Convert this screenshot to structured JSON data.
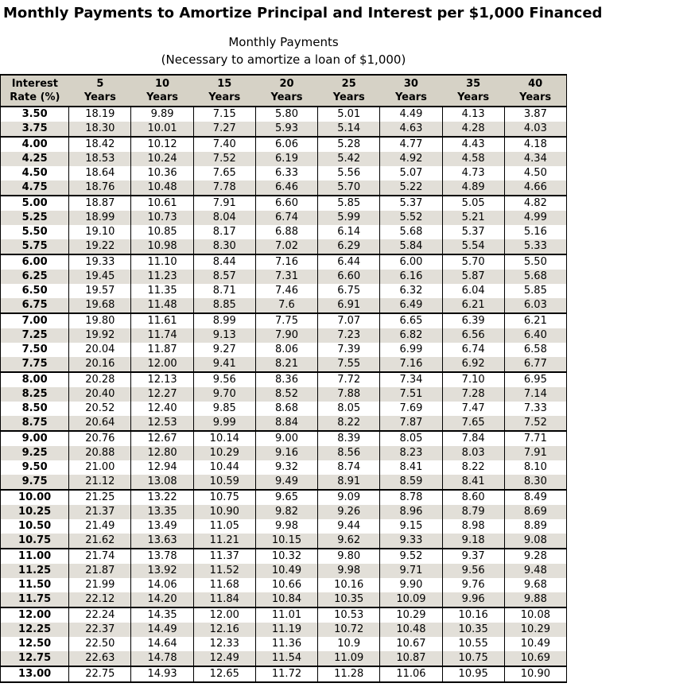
{
  "title": "Monthly Payments to Amortize Principal and Interest per $1,000 Financed",
  "subtitle": {
    "line1": "Monthly Payments",
    "line2": "(Necessary to amortize a loan of $1,000)"
  },
  "colors": {
    "header_bg": "#d6d2c6",
    "alt_row_bg": "#e2dfd8",
    "border": "#000000"
  },
  "table": {
    "header": {
      "rate_label_line1": "Interest",
      "rate_label_line2": "Rate (%)",
      "year_values": [
        "5",
        "10",
        "15",
        "20",
        "25",
        "30",
        "35",
        "40"
      ],
      "year_suffix": "Years"
    },
    "rows": [
      {
        "rate": "3.50",
        "values": [
          "18.19",
          "9.89",
          "7.15",
          "5.80",
          "5.01",
          "4.49",
          "4.13",
          "3.87"
        ]
      },
      {
        "rate": "3.75",
        "values": [
          "18.30",
          "10.01",
          "7.27",
          "5.93",
          "5.14",
          "4.63",
          "4.28",
          "4.03"
        ]
      },
      {
        "rate": "4.00",
        "values": [
          "18.42",
          "10.12",
          "7.40",
          "6.06",
          "5.28",
          "4.77",
          "4.43",
          "4.18"
        ]
      },
      {
        "rate": "4.25",
        "values": [
          "18.53",
          "10.24",
          "7.52",
          "6.19",
          "5.42",
          "4.92",
          "4.58",
          "4.34"
        ]
      },
      {
        "rate": "4.50",
        "values": [
          "18.64",
          "10.36",
          "7.65",
          "6.33",
          "5.56",
          "5.07",
          "4.73",
          "4.50"
        ]
      },
      {
        "rate": "4.75",
        "values": [
          "18.76",
          "10.48",
          "7.78",
          "6.46",
          "5.70",
          "5.22",
          "4.89",
          "4.66"
        ]
      },
      {
        "rate": "5.00",
        "values": [
          "18.87",
          "10.61",
          "7.91",
          "6.60",
          "5.85",
          "5.37",
          "5.05",
          "4.82"
        ]
      },
      {
        "rate": "5.25",
        "values": [
          "18.99",
          "10.73",
          "8.04",
          "6.74",
          "5.99",
          "5.52",
          "5.21",
          "4.99"
        ]
      },
      {
        "rate": "5.50",
        "values": [
          "19.10",
          "10.85",
          "8.17",
          "6.88",
          "6.14",
          "5.68",
          "5.37",
          "5.16"
        ]
      },
      {
        "rate": "5.75",
        "values": [
          "19.22",
          "10.98",
          "8.30",
          "7.02",
          "6.29",
          "5.84",
          "5.54",
          "5.33"
        ]
      },
      {
        "rate": "6.00",
        "values": [
          "19.33",
          "11.10",
          "8.44",
          "7.16",
          "6.44",
          "6.00",
          "5.70",
          "5.50"
        ]
      },
      {
        "rate": "6.25",
        "values": [
          "19.45",
          "11.23",
          "8.57",
          "7.31",
          "6.60",
          "6.16",
          "5.87",
          "5.68"
        ]
      },
      {
        "rate": "6.50",
        "values": [
          "19.57",
          "11.35",
          "8.71",
          "7.46",
          "6.75",
          "6.32",
          "6.04",
          "5.85"
        ]
      },
      {
        "rate": "6.75",
        "values": [
          "19.68",
          "11.48",
          "8.85",
          "7.6",
          "6.91",
          "6.49",
          "6.21",
          "6.03"
        ]
      },
      {
        "rate": "7.00",
        "values": [
          "19.80",
          "11.61",
          "8.99",
          "7.75",
          "7.07",
          "6.65",
          "6.39",
          "6.21"
        ]
      },
      {
        "rate": "7.25",
        "values": [
          "19.92",
          "11.74",
          "9.13",
          "7.90",
          "7.23",
          "6.82",
          "6.56",
          "6.40"
        ]
      },
      {
        "rate": "7.50",
        "values": [
          "20.04",
          "11.87",
          "9.27",
          "8.06",
          "7.39",
          "6.99",
          "6.74",
          "6.58"
        ]
      },
      {
        "rate": "7.75",
        "values": [
          "20.16",
          "12.00",
          "9.41",
          "8.21",
          "7.55",
          "7.16",
          "6.92",
          "6.77"
        ]
      },
      {
        "rate": "8.00",
        "values": [
          "20.28",
          "12.13",
          "9.56",
          "8.36",
          "7.72",
          "7.34",
          "7.10",
          "6.95"
        ]
      },
      {
        "rate": "8.25",
        "values": [
          "20.40",
          "12.27",
          "9.70",
          "8.52",
          "7.88",
          "7.51",
          "7.28",
          "7.14"
        ]
      },
      {
        "rate": "8.50",
        "values": [
          "20.52",
          "12.40",
          "9.85",
          "8.68",
          "8.05",
          "7.69",
          "7.47",
          "7.33"
        ]
      },
      {
        "rate": "8.75",
        "values": [
          "20.64",
          "12.53",
          "9.99",
          "8.84",
          "8.22",
          "7.87",
          "7.65",
          "7.52"
        ]
      },
      {
        "rate": "9.00",
        "values": [
          "20.76",
          "12.67",
          "10.14",
          "9.00",
          "8.39",
          "8.05",
          "7.84",
          "7.71"
        ]
      },
      {
        "rate": "9.25",
        "values": [
          "20.88",
          "12.80",
          "10.29",
          "9.16",
          "8.56",
          "8.23",
          "8.03",
          "7.91"
        ]
      },
      {
        "rate": "9.50",
        "values": [
          "21.00",
          "12.94",
          "10.44",
          "9.32",
          "8.74",
          "8.41",
          "8.22",
          "8.10"
        ]
      },
      {
        "rate": "9.75",
        "values": [
          "21.12",
          "13.08",
          "10.59",
          "9.49",
          "8.91",
          "8.59",
          "8.41",
          "8.30"
        ]
      },
      {
        "rate": "10.00",
        "values": [
          "21.25",
          "13.22",
          "10.75",
          "9.65",
          "9.09",
          "8.78",
          "8.60",
          "8.49"
        ]
      },
      {
        "rate": "10.25",
        "values": [
          "21.37",
          "13.35",
          "10.90",
          "9.82",
          "9.26",
          "8.96",
          "8.79",
          "8.69"
        ]
      },
      {
        "rate": "10.50",
        "values": [
          "21.49",
          "13.49",
          "11.05",
          "9.98",
          "9.44",
          "9.15",
          "8.98",
          "8.89"
        ]
      },
      {
        "rate": "10.75",
        "values": [
          "21.62",
          "13.63",
          "11.21",
          "10.15",
          "9.62",
          "9.33",
          "9.18",
          "9.08"
        ]
      },
      {
        "rate": "11.00",
        "values": [
          "21.74",
          "13.78",
          "11.37",
          "10.32",
          "9.80",
          "9.52",
          "9.37",
          "9.28"
        ]
      },
      {
        "rate": "11.25",
        "values": [
          "21.87",
          "13.92",
          "11.52",
          "10.49",
          "9.98",
          "9.71",
          "9.56",
          "9.48"
        ]
      },
      {
        "rate": "11.50",
        "values": [
          "21.99",
          "14.06",
          "11.68",
          "10.66",
          "10.16",
          "9.90",
          "9.76",
          "9.68"
        ]
      },
      {
        "rate": "11.75",
        "values": [
          "22.12",
          "14.20",
          "11.84",
          "10.84",
          "10.35",
          "10.09",
          "9.96",
          "9.88"
        ]
      },
      {
        "rate": "12.00",
        "values": [
          "22.24",
          "14.35",
          "12.00",
          "11.01",
          "10.53",
          "10.29",
          "10.16",
          "10.08"
        ]
      },
      {
        "rate": "12.25",
        "values": [
          "22.37",
          "14.49",
          "12.16",
          "11.19",
          "10.72",
          "10.48",
          "10.35",
          "10.29"
        ]
      },
      {
        "rate": "12.50",
        "values": [
          "22.50",
          "14.64",
          "12.33",
          "11.36",
          "10.9",
          "10.67",
          "10.55",
          "10.49"
        ]
      },
      {
        "rate": "12.75",
        "values": [
          "22.63",
          "14.78",
          "12.49",
          "11.54",
          "11.09",
          "10.87",
          "10.75",
          "10.69"
        ]
      },
      {
        "rate": "13.00",
        "values": [
          "22.75",
          "14.93",
          "12.65",
          "11.72",
          "11.28",
          "11.06",
          "10.95",
          "10.90"
        ]
      }
    ]
  }
}
